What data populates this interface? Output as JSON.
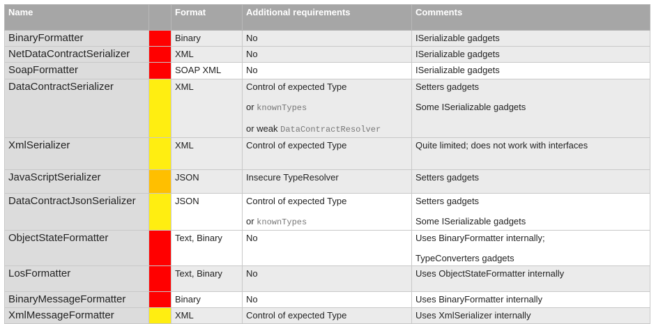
{
  "headers": {
    "name": "Name",
    "format": "Format",
    "requirements": "Additional requirements",
    "comments": "Comments"
  },
  "colors": {
    "red": "#ff0000",
    "yellow": "#ffee11",
    "orange": "#ffbf00"
  },
  "rows": [
    {
      "name": "BinaryFormatter",
      "risk": "red",
      "format": "Binary",
      "req": [
        [
          "No",
          ""
        ]
      ],
      "comments": [
        "ISerializable gadgets"
      ],
      "shade": "g"
    },
    {
      "name": "NetDataContractSerializer",
      "risk": "red",
      "format": "XML",
      "req": [
        [
          "No",
          ""
        ]
      ],
      "comments": [
        "ISerializable gadgets"
      ],
      "shade": "g"
    },
    {
      "name": "SoapFormatter",
      "risk": "red",
      "format": "SOAP XML",
      "req": [
        [
          "No",
          ""
        ]
      ],
      "comments": [
        "ISerializable gadgets"
      ],
      "shade": "w"
    },
    {
      "name": "DataContractSerializer",
      "risk": "yellow",
      "format": "XML",
      "req": [
        [
          "Control of expected Type",
          ""
        ],
        [
          "or ",
          "knownTypes"
        ],
        [
          "or weak ",
          "DataContractResolver"
        ]
      ],
      "comments": [
        "Setters gadgets",
        "Some ISerializable gadgets"
      ],
      "shade": "g"
    },
    {
      "name": "XmlSerializer",
      "risk": "yellow",
      "format": "XML",
      "req": [
        [
          "Control of expected Type",
          ""
        ]
      ],
      "comments": [
        "Quite limited; does not work with interfaces"
      ],
      "shade": "g"
    },
    {
      "name": "JavaScriptSerializer",
      "risk": "orange",
      "format": "JSON",
      "req": [
        [
          "Insecure TypeResolver",
          ""
        ]
      ],
      "comments": [
        "Setters gadgets"
      ],
      "shade": "g"
    },
    {
      "name": "DataContractJsonSerializer",
      "risk": "yellow",
      "format": "JSON",
      "req": [
        [
          "Control of expected Type",
          ""
        ],
        [
          "or ",
          "knownTypes"
        ]
      ],
      "comments": [
        "Setters gadgets",
        "Some ISerializable gadgets"
      ],
      "shade": "w"
    },
    {
      "name": "ObjectStateFormatter",
      "risk": "red",
      "format": "Text, Binary",
      "req": [
        [
          "No",
          ""
        ]
      ],
      "comments": [
        "Uses BinaryFormatter internally;",
        "TypeConverters gadgets"
      ],
      "shade": "w"
    },
    {
      "name": "LosFormatter",
      "risk": "red",
      "format": "Text, Binary",
      "req": [
        [
          "No",
          ""
        ]
      ],
      "comments": [
        "Uses ObjectStateFormatter internally"
      ],
      "shade": "g"
    },
    {
      "name": "BinaryMessageFormatter",
      "risk": "red",
      "format": "Binary",
      "req": [
        [
          "No",
          ""
        ]
      ],
      "comments": [
        "Uses BinaryFormatter internally"
      ],
      "shade": "w"
    },
    {
      "name": "XmlMessageFormatter",
      "risk": "yellow",
      "format": "XML",
      "req": [
        [
          "Control of expected Type",
          ""
        ]
      ],
      "comments": [
        "Uses XmlSerializer internally"
      ],
      "shade": "g"
    }
  ]
}
